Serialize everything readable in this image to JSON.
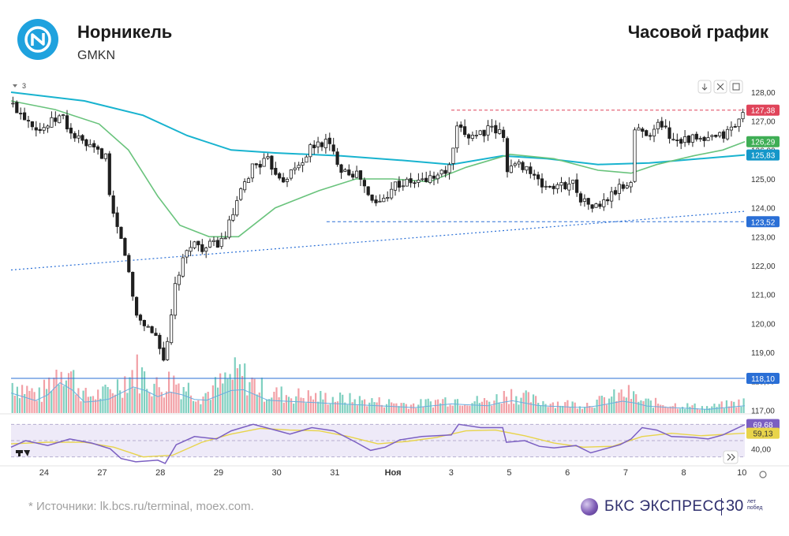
{
  "header": {
    "company": "Норникель",
    "ticker": "GMKN",
    "chart_title": "Часовой график"
  },
  "footer": {
    "sources": "*  Источники: lk.bcs.ru/terminal, moex.com.",
    "brand_name": "БКС ЭКСПРЕСС",
    "brand_number": "30",
    "brand_sub_1": "лет",
    "brand_sub_2": "побед"
  },
  "colors": {
    "bull": "#55b9a7",
    "bear": "#1f1f1f",
    "vol_up": "#7fd0c0",
    "vol_down": "#f2a0a6",
    "ma_fast": "#69c37c",
    "ma_slow": "#18b3cf",
    "support": "#2a6fd6",
    "resistance": "#e0445a",
    "rsi": "#7b5fc2",
    "rsi_signal": "#e8d44a",
    "logo": "#1fa2de",
    "brand": "#2f2f6e"
  },
  "chart_data": {
    "type": "candlestick",
    "timeframe": "1h",
    "x_ticks": [
      "24",
      "27",
      "28",
      "29",
      "30",
      "31",
      "Ноя",
      "3",
      "5",
      "6",
      "7",
      "8",
      "10"
    ],
    "y_ticks": [
      "128,00",
      "127,00",
      "126,00",
      "125,00",
      "124,00",
      "123,00",
      "122,00",
      "121,00",
      "120,00",
      "119,00",
      "118,00",
      "117,00"
    ],
    "ylim": [
      116.9,
      128.3
    ],
    "panel_label": "3",
    "price_labels": [
      {
        "value": 127.38,
        "text": "127,38",
        "role": "last"
      },
      {
        "value": 126.29,
        "text": "126,29",
        "role": "ma-fast"
      },
      {
        "value": 125.83,
        "text": "125,83",
        "role": "ma-slow"
      },
      {
        "value": 123.52,
        "text": "123,52",
        "role": "support"
      },
      {
        "value": 118.1,
        "text": "118,10",
        "role": "level"
      }
    ],
    "levels": {
      "resistance_dashed": 127.38,
      "support_dashed": 123.52,
      "horizontal_line": 118.1,
      "trendline": {
        "from_x": 0,
        "from_y": 121.85,
        "to_x": 1,
        "to_y": 123.88
      }
    },
    "anchors": [
      {
        "x": 0.0,
        "y": 127.6
      },
      {
        "x": 0.04,
        "y": 126.7
      },
      {
        "x": 0.07,
        "y": 127.2
      },
      {
        "x": 0.08,
        "y": 126.6
      },
      {
        "x": 0.11,
        "y": 126.0
      },
      {
        "x": 0.13,
        "y": 125.8
      },
      {
        "x": 0.135,
        "y": 124.0
      },
      {
        "x": 0.155,
        "y": 122.5
      },
      {
        "x": 0.17,
        "y": 120.3
      },
      {
        "x": 0.2,
        "y": 119.5
      },
      {
        "x": 0.21,
        "y": 118.6
      },
      {
        "x": 0.225,
        "y": 121.5
      },
      {
        "x": 0.245,
        "y": 122.8
      },
      {
        "x": 0.265,
        "y": 122.6
      },
      {
        "x": 0.29,
        "y": 122.9
      },
      {
        "x": 0.31,
        "y": 124.3
      },
      {
        "x": 0.33,
        "y": 125.5
      },
      {
        "x": 0.35,
        "y": 125.6
      },
      {
        "x": 0.37,
        "y": 125.0
      },
      {
        "x": 0.39,
        "y": 125.4
      },
      {
        "x": 0.41,
        "y": 126.1
      },
      {
        "x": 0.43,
        "y": 126.3
      },
      {
        "x": 0.45,
        "y": 125.4
      },
      {
        "x": 0.475,
        "y": 125.1
      },
      {
        "x": 0.49,
        "y": 124.2
      },
      {
        "x": 0.505,
        "y": 124.2
      },
      {
        "x": 0.52,
        "y": 124.8
      },
      {
        "x": 0.555,
        "y": 124.9
      },
      {
        "x": 0.58,
        "y": 125.1
      },
      {
        "x": 0.6,
        "y": 125.4
      },
      {
        "x": 0.605,
        "y": 126.7
      },
      {
        "x": 0.625,
        "y": 126.5
      },
      {
        "x": 0.65,
        "y": 126.7
      },
      {
        "x": 0.67,
        "y": 126.6
      },
      {
        "x": 0.675,
        "y": 125.4
      },
      {
        "x": 0.7,
        "y": 125.5
      },
      {
        "x": 0.72,
        "y": 124.8
      },
      {
        "x": 0.745,
        "y": 124.7
      },
      {
        "x": 0.765,
        "y": 124.9
      },
      {
        "x": 0.78,
        "y": 124.2
      },
      {
        "x": 0.8,
        "y": 124.0
      },
      {
        "x": 0.825,
        "y": 124.6
      },
      {
        "x": 0.845,
        "y": 124.9
      },
      {
        "x": 0.85,
        "y": 126.7
      },
      {
        "x": 0.875,
        "y": 126.6
      },
      {
        "x": 0.885,
        "y": 127.0
      },
      {
        "x": 0.9,
        "y": 126.4
      },
      {
        "x": 0.925,
        "y": 126.4
      },
      {
        "x": 0.945,
        "y": 126.3
      },
      {
        "x": 0.97,
        "y": 126.5
      },
      {
        "x": 0.985,
        "y": 126.8
      },
      {
        "x": 1.0,
        "y": 127.3
      }
    ],
    "ma_fast": [
      {
        "x": 0.0,
        "y": 127.7
      },
      {
        "x": 0.06,
        "y": 127.4
      },
      {
        "x": 0.12,
        "y": 126.9
      },
      {
        "x": 0.16,
        "y": 126.0
      },
      {
        "x": 0.2,
        "y": 124.4
      },
      {
        "x": 0.23,
        "y": 123.4
      },
      {
        "x": 0.27,
        "y": 123.0
      },
      {
        "x": 0.31,
        "y": 123.0
      },
      {
        "x": 0.36,
        "y": 124.0
      },
      {
        "x": 0.42,
        "y": 124.6
      },
      {
        "x": 0.47,
        "y": 125.0
      },
      {
        "x": 0.52,
        "y": 125.0
      },
      {
        "x": 0.57,
        "y": 124.9
      },
      {
        "x": 0.62,
        "y": 125.4
      },
      {
        "x": 0.68,
        "y": 125.85
      },
      {
        "x": 0.74,
        "y": 125.7
      },
      {
        "x": 0.8,
        "y": 125.3
      },
      {
        "x": 0.845,
        "y": 125.2
      },
      {
        "x": 0.88,
        "y": 125.5
      },
      {
        "x": 0.93,
        "y": 125.8
      },
      {
        "x": 0.97,
        "y": 126.0
      },
      {
        "x": 1.0,
        "y": 126.29
      }
    ],
    "ma_slow": [
      {
        "x": 0.0,
        "y": 128.0
      },
      {
        "x": 0.1,
        "y": 127.7
      },
      {
        "x": 0.18,
        "y": 127.2
      },
      {
        "x": 0.24,
        "y": 126.5
      },
      {
        "x": 0.3,
        "y": 126.0
      },
      {
        "x": 0.36,
        "y": 125.9
      },
      {
        "x": 0.45,
        "y": 125.8
      },
      {
        "x": 0.53,
        "y": 125.65
      },
      {
        "x": 0.6,
        "y": 125.5
      },
      {
        "x": 0.67,
        "y": 125.8
      },
      {
        "x": 0.73,
        "y": 125.7
      },
      {
        "x": 0.8,
        "y": 125.5
      },
      {
        "x": 0.87,
        "y": 125.55
      },
      {
        "x": 0.94,
        "y": 125.7
      },
      {
        "x": 1.0,
        "y": 125.83
      }
    ],
    "volume": [
      {
        "x": 0.0,
        "y": 0.55
      },
      {
        "x": 0.04,
        "y": 0.3
      },
      {
        "x": 0.07,
        "y": 0.9
      },
      {
        "x": 0.1,
        "y": 0.3
      },
      {
        "x": 0.13,
        "y": 0.35
      },
      {
        "x": 0.155,
        "y": 0.6
      },
      {
        "x": 0.17,
        "y": 0.75
      },
      {
        "x": 0.2,
        "y": 0.45
      },
      {
        "x": 0.22,
        "y": 0.6
      },
      {
        "x": 0.26,
        "y": 0.3
      },
      {
        "x": 0.31,
        "y": 0.7
      },
      {
        "x": 0.35,
        "y": 0.35
      },
      {
        "x": 0.4,
        "y": 0.3
      },
      {
        "x": 0.45,
        "y": 0.25
      },
      {
        "x": 0.5,
        "y": 0.2
      },
      {
        "x": 0.55,
        "y": 0.15
      },
      {
        "x": 0.6,
        "y": 0.25
      },
      {
        "x": 0.65,
        "y": 0.2
      },
      {
        "x": 0.68,
        "y": 0.35
      },
      {
        "x": 0.72,
        "y": 0.2
      },
      {
        "x": 0.78,
        "y": 0.15
      },
      {
        "x": 0.8,
        "y": 0.2
      },
      {
        "x": 0.84,
        "y": 0.35
      },
      {
        "x": 0.86,
        "y": 0.2
      },
      {
        "x": 0.9,
        "y": 0.15
      },
      {
        "x": 0.95,
        "y": 0.1
      },
      {
        "x": 1.0,
        "y": 0.2
      }
    ],
    "rsi": {
      "ylim": [
        20,
        80
      ],
      "tick": "40,00",
      "levels": [
        70,
        50,
        30
      ],
      "last_labels": [
        {
          "value": 69.68,
          "text": "69,68"
        },
        {
          "value": 59.13,
          "text": "59,13"
        }
      ],
      "rsi": [
        {
          "x": 0.0,
          "y": 42
        },
        {
          "x": 0.02,
          "y": 50
        },
        {
          "x": 0.05,
          "y": 44
        },
        {
          "x": 0.08,
          "y": 52
        },
        {
          "x": 0.11,
          "y": 47
        },
        {
          "x": 0.135,
          "y": 40
        },
        {
          "x": 0.15,
          "y": 28
        },
        {
          "x": 0.17,
          "y": 24
        },
        {
          "x": 0.2,
          "y": 26
        },
        {
          "x": 0.21,
          "y": 22
        },
        {
          "x": 0.225,
          "y": 45
        },
        {
          "x": 0.25,
          "y": 55
        },
        {
          "x": 0.28,
          "y": 52
        },
        {
          "x": 0.3,
          "y": 62
        },
        {
          "x": 0.33,
          "y": 70
        },
        {
          "x": 0.36,
          "y": 63
        },
        {
          "x": 0.38,
          "y": 58
        },
        {
          "x": 0.41,
          "y": 66
        },
        {
          "x": 0.44,
          "y": 62
        },
        {
          "x": 0.47,
          "y": 48
        },
        {
          "x": 0.49,
          "y": 38
        },
        {
          "x": 0.51,
          "y": 42
        },
        {
          "x": 0.53,
          "y": 51
        },
        {
          "x": 0.56,
          "y": 55
        },
        {
          "x": 0.6,
          "y": 57
        },
        {
          "x": 0.61,
          "y": 70
        },
        {
          "x": 0.64,
          "y": 66
        },
        {
          "x": 0.67,
          "y": 66
        },
        {
          "x": 0.675,
          "y": 48
        },
        {
          "x": 0.7,
          "y": 50
        },
        {
          "x": 0.72,
          "y": 43
        },
        {
          "x": 0.74,
          "y": 41
        },
        {
          "x": 0.77,
          "y": 44
        },
        {
          "x": 0.79,
          "y": 35
        },
        {
          "x": 0.81,
          "y": 40
        },
        {
          "x": 0.83,
          "y": 45
        },
        {
          "x": 0.845,
          "y": 52
        },
        {
          "x": 0.86,
          "y": 66
        },
        {
          "x": 0.88,
          "y": 63
        },
        {
          "x": 0.9,
          "y": 55
        },
        {
          "x": 0.93,
          "y": 54
        },
        {
          "x": 0.95,
          "y": 52
        },
        {
          "x": 0.97,
          "y": 57
        },
        {
          "x": 1.0,
          "y": 69.68
        }
      ],
      "signal": [
        {
          "x": 0.0,
          "y": 46
        },
        {
          "x": 0.05,
          "y": 48
        },
        {
          "x": 0.1,
          "y": 48
        },
        {
          "x": 0.14,
          "y": 42
        },
        {
          "x": 0.18,
          "y": 30
        },
        {
          "x": 0.22,
          "y": 32
        },
        {
          "x": 0.26,
          "y": 48
        },
        {
          "x": 0.3,
          "y": 58
        },
        {
          "x": 0.34,
          "y": 65
        },
        {
          "x": 0.38,
          "y": 63
        },
        {
          "x": 0.42,
          "y": 62
        },
        {
          "x": 0.46,
          "y": 55
        },
        {
          "x": 0.5,
          "y": 46
        },
        {
          "x": 0.54,
          "y": 49
        },
        {
          "x": 0.58,
          "y": 54
        },
        {
          "x": 0.62,
          "y": 62
        },
        {
          "x": 0.66,
          "y": 63
        },
        {
          "x": 0.7,
          "y": 56
        },
        {
          "x": 0.74,
          "y": 47
        },
        {
          "x": 0.78,
          "y": 42
        },
        {
          "x": 0.82,
          "y": 43
        },
        {
          "x": 0.86,
          "y": 55
        },
        {
          "x": 0.9,
          "y": 59
        },
        {
          "x": 0.94,
          "y": 56
        },
        {
          "x": 1.0,
          "y": 59.13
        }
      ]
    }
  }
}
